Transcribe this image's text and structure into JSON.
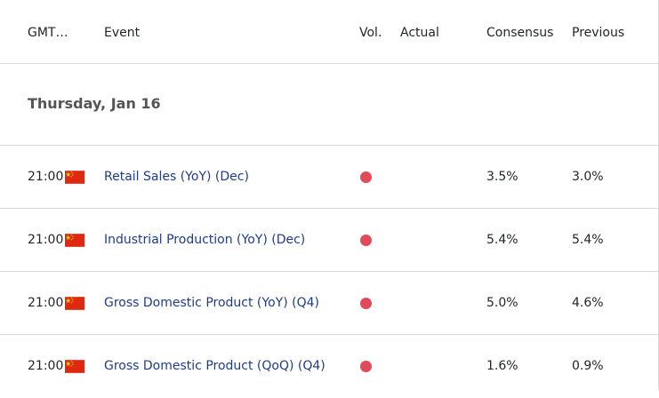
{
  "header": {
    "time": "GMT…",
    "event": "Event",
    "vol": "Vol.",
    "actual": "Actual",
    "consensus": "Consensus",
    "previous": "Previous"
  },
  "date_group": {
    "label": "Thursday, Jan 16"
  },
  "colors": {
    "volatility_high": "#e04a59",
    "event_link": "#1f3c88",
    "flag_red": "#de2910",
    "flag_star": "#ffde00"
  },
  "events": [
    {
      "time": "21:00",
      "flag_icon": "china-flag-icon",
      "name": "Retail Sales (YoY) (Dec)",
      "volatility": "high",
      "actual": "",
      "consensus": "3.5%",
      "previous": "3.0%"
    },
    {
      "time": "21:00",
      "flag_icon": "china-flag-icon",
      "name": "Industrial Production (YoY) (Dec)",
      "volatility": "high",
      "actual": "",
      "consensus": "5.4%",
      "previous": "5.4%"
    },
    {
      "time": "21:00",
      "flag_icon": "china-flag-icon",
      "name": "Gross Domestic Product (YoY) (Q4)",
      "volatility": "high",
      "actual": "",
      "consensus": "5.0%",
      "previous": "4.6%"
    },
    {
      "time": "21:00",
      "flag_icon": "china-flag-icon",
      "name": "Gross Domestic Product (QoQ) (Q4)",
      "volatility": "high",
      "actual": "",
      "consensus": "1.6%",
      "previous": "0.9%"
    }
  ]
}
